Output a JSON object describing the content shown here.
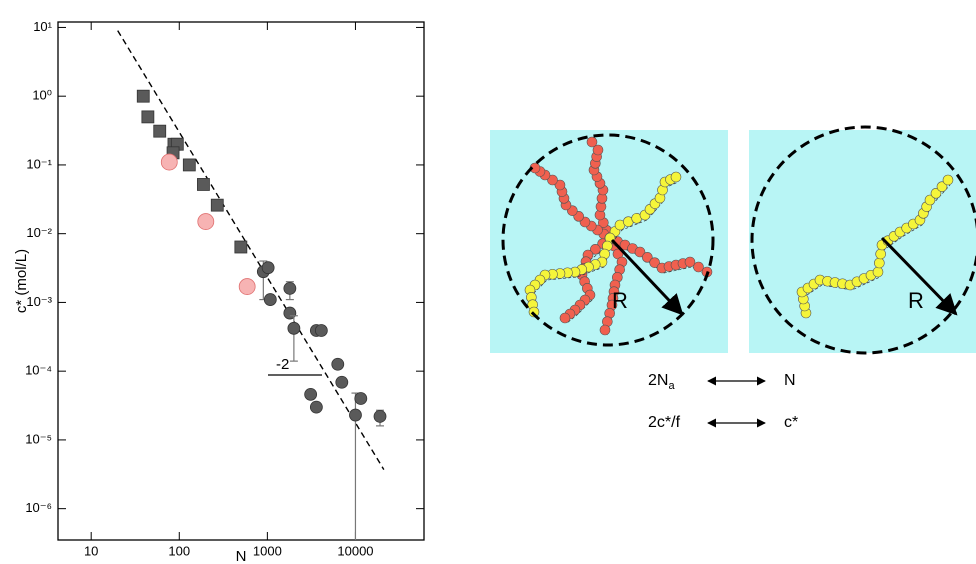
{
  "chart_data": {
    "type": "scatter",
    "x_label": "N",
    "y_label": "c* (mol/L)",
    "xlog": true,
    "ylog": true,
    "xlim": [
      4.2,
      60000
    ],
    "ylim": [
      3.5e-07,
      12
    ],
    "xticks": [
      10,
      100,
      1000,
      10000
    ],
    "yticks": [
      {
        "value": 1e-06,
        "label": "10⁻⁶"
      },
      {
        "value": 1e-05,
        "label": "10⁻⁵"
      },
      {
        "value": 0.0001,
        "label": "10⁻⁴"
      },
      {
        "value": 0.001,
        "label": "10⁻³"
      },
      {
        "value": 0.01,
        "label": "10⁻²"
      },
      {
        "value": 0.1,
        "label": "10⁻¹"
      },
      {
        "value": 1,
        "label": "10⁰"
      },
      {
        "value": 10,
        "label": "10¹"
      }
    ],
    "series": [
      {
        "marker": "square",
        "color": "#5a5a5a",
        "x": [
          39,
          44,
          60,
          87,
          95,
          85,
          130,
          188,
          270,
          500
        ],
        "values": [
          1.0,
          0.5,
          0.31,
          0.2,
          0.2,
          0.15,
          0.1,
          0.052,
          0.026,
          0.0064
        ]
      },
      {
        "marker": "circle",
        "color": "#f7b3b3",
        "x": [
          77,
          200,
          590
        ],
        "values": [
          0.11,
          0.015,
          0.0017
        ]
      },
      {
        "marker": "circle",
        "color": "#5a5a5a",
        "x": [
          900,
          1020,
          1080,
          1800,
          1800,
          2000,
          3600,
          4100,
          3100,
          3600,
          6300,
          7000,
          10000,
          11500,
          19000
        ],
        "values": [
          0.0028,
          0.0032,
          0.0011,
          0.0016,
          0.0007,
          0.00042,
          0.00039,
          0.00039,
          4.6e-05,
          3e-05,
          0.000126,
          6.9e-05,
          2.3e-05,
          4e-05,
          2.2e-05
        ],
        "err_low": [
          0.0011,
          null,
          null,
          0.0011,
          null,
          0.00014,
          null,
          null,
          null,
          null,
          null,
          null,
          3.5e-07,
          null,
          1.6e-05
        ],
        "err_high": [
          0.004,
          null,
          null,
          0.002,
          null,
          0.00064,
          null,
          null,
          null,
          null,
          null,
          null,
          4.8e-05,
          null,
          2.7e-05
        ]
      }
    ],
    "fit": {
      "x": [
        20,
        21000
      ],
      "values": [
        9,
        3.7e-06
      ],
      "color": "#000",
      "dashed": true
    },
    "annotation": {
      "text": "-2"
    }
  },
  "diagram": {
    "panels": [
      {
        "radius_label": "R"
      },
      {
        "radius_label": "R"
      }
    ],
    "mappings": [
      {
        "left": "2N",
        "left_sub": "a",
        "right": "N"
      },
      {
        "left": "2c*/f",
        "right": "c*"
      }
    ]
  }
}
